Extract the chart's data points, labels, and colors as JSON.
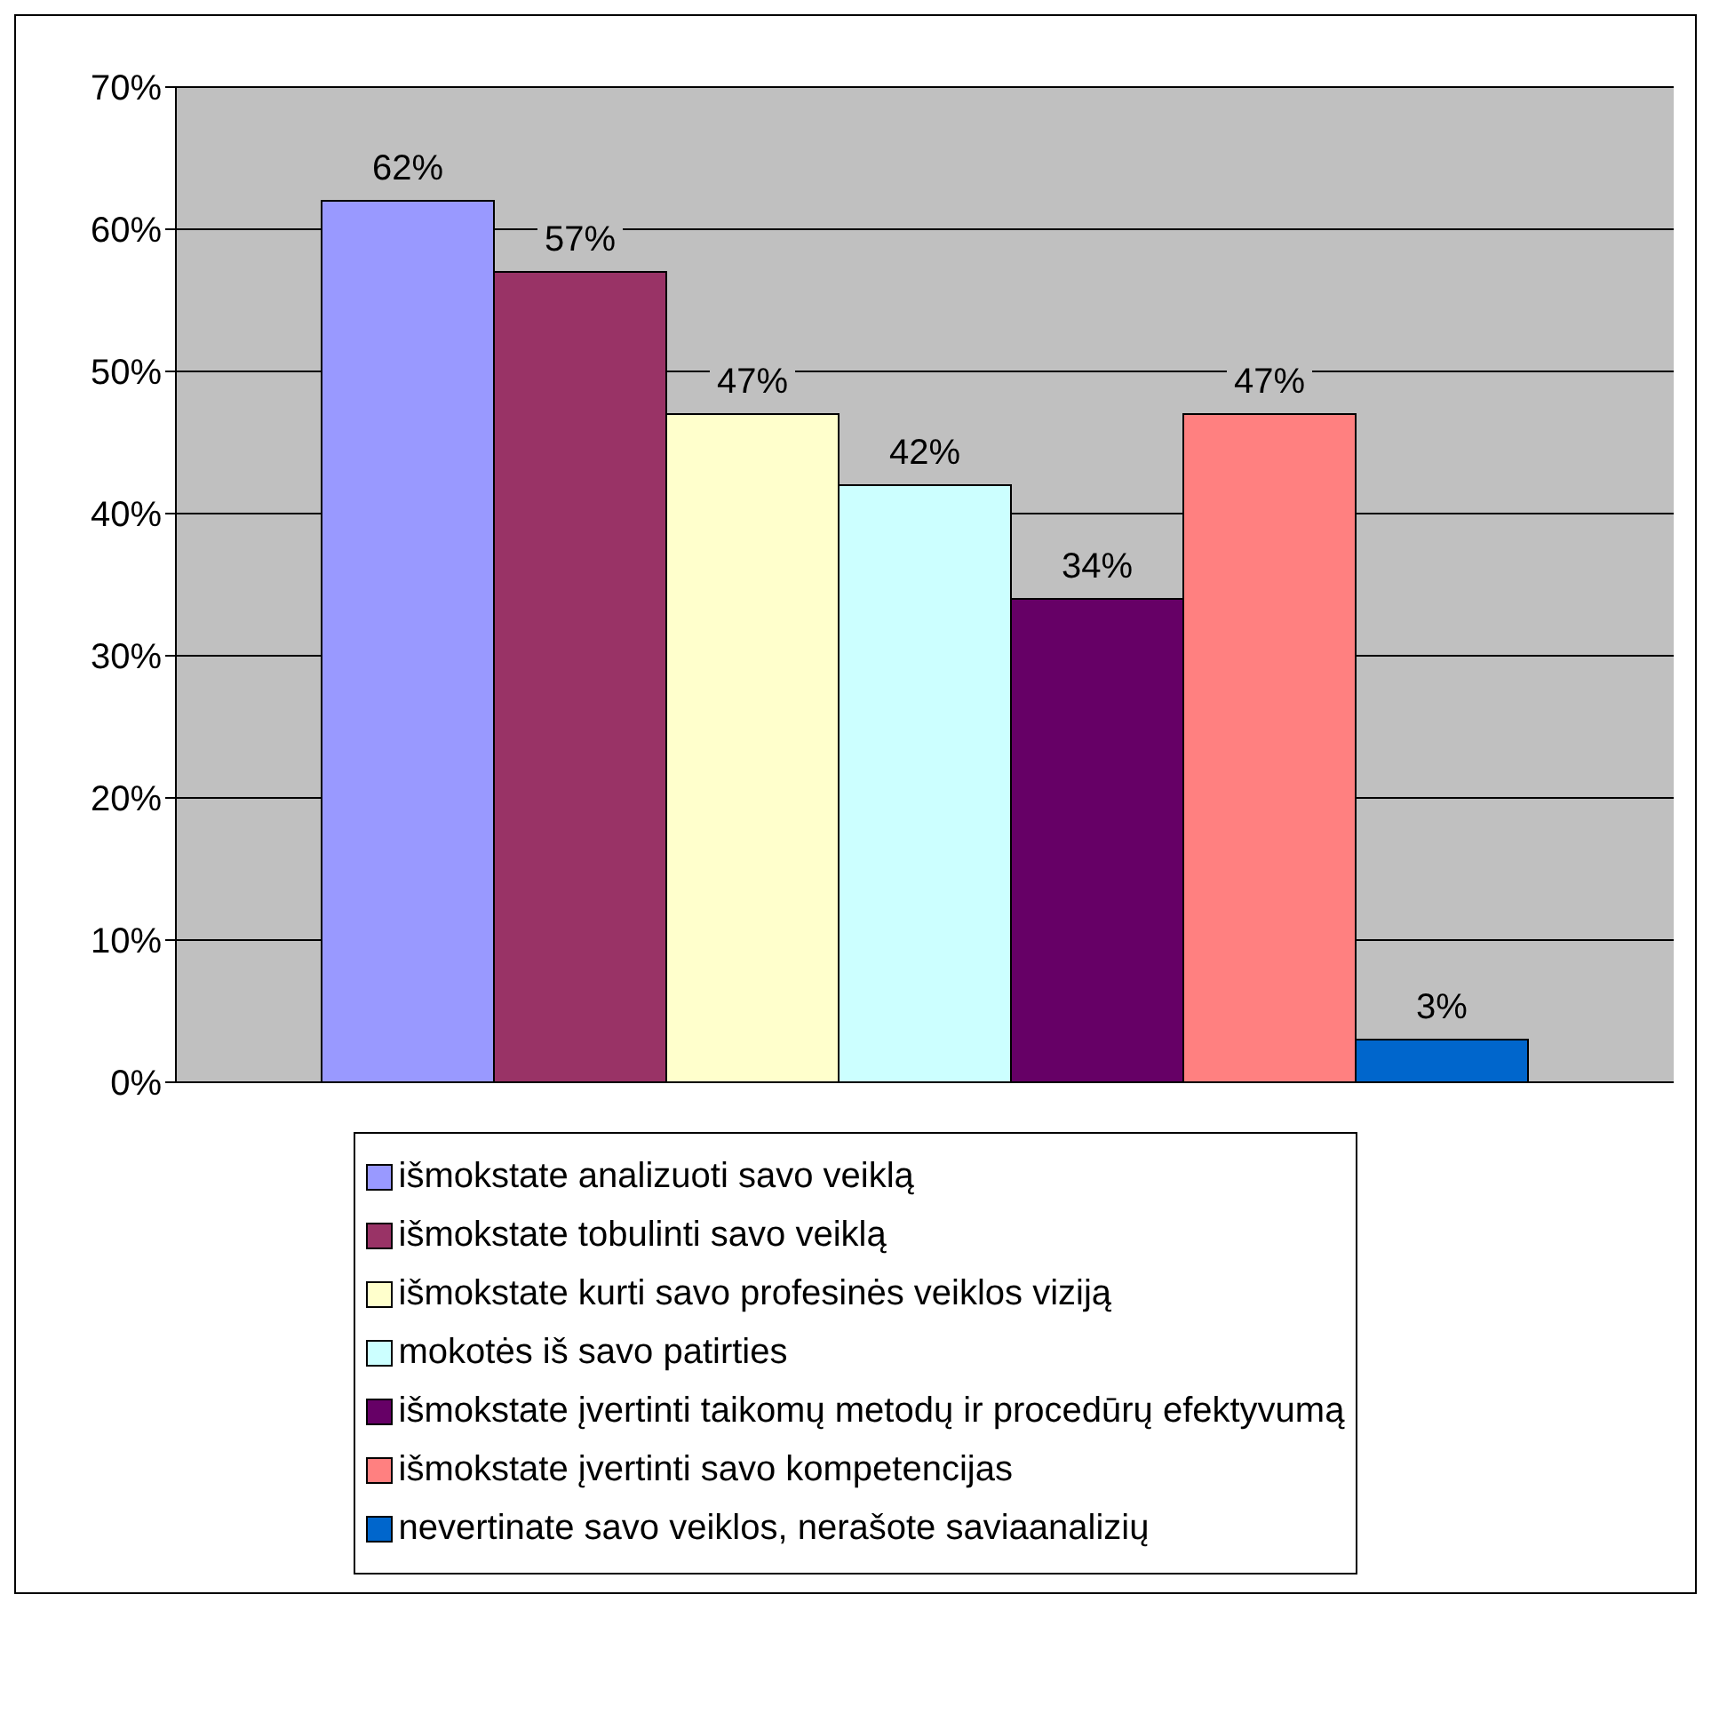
{
  "chart_data": {
    "type": "bar",
    "categories": [
      null
    ],
    "series": [
      {
        "name": "išmokstate analizuoti savo veiklą",
        "color": "#9999ff",
        "values": [
          62
        ],
        "value_labels": [
          "62%"
        ]
      },
      {
        "name": "išmokstate tobulinti savo veiklą",
        "color": "#993366",
        "values": [
          57
        ],
        "value_labels": [
          "57%"
        ]
      },
      {
        "name": "išmokstate kurti savo profesinės veiklos viziją",
        "color": "#ffffcc",
        "values": [
          47
        ],
        "value_labels": [
          "47%"
        ]
      },
      {
        "name": "mokotės iš savo patirties",
        "color": "#ccffff",
        "values": [
          42
        ],
        "value_labels": [
          "42%"
        ]
      },
      {
        "name": "išmokstate įvertinti taikomų metodų ir procedūrų efektyvumą",
        "color": "#660066",
        "values": [
          34
        ],
        "value_labels": [
          "34%"
        ]
      },
      {
        "name": "išmokstate įvertinti savo kompetencijas",
        "color": "#ff8080",
        "values": [
          47
        ],
        "value_labels": [
          "47%"
        ]
      },
      {
        "name": "nevertinate savo veiklos, nerašote saviaanalizių",
        "color": "#0066cc",
        "values": [
          3
        ],
        "value_labels": [
          "3%"
        ]
      }
    ],
    "ylim": [
      0,
      70
    ],
    "yticks": [
      {
        "value": 0,
        "label": "0%"
      },
      {
        "value": 10,
        "label": "10%"
      },
      {
        "value": 20,
        "label": "20%"
      },
      {
        "value": 30,
        "label": "30%"
      },
      {
        "value": 40,
        "label": "40%"
      },
      {
        "value": 50,
        "label": "50%"
      },
      {
        "value": 60,
        "label": "60%"
      },
      {
        "value": 70,
        "label": "70%"
      }
    ],
    "grid": "y",
    "legend": "bottom",
    "tick_labels": "y"
  }
}
